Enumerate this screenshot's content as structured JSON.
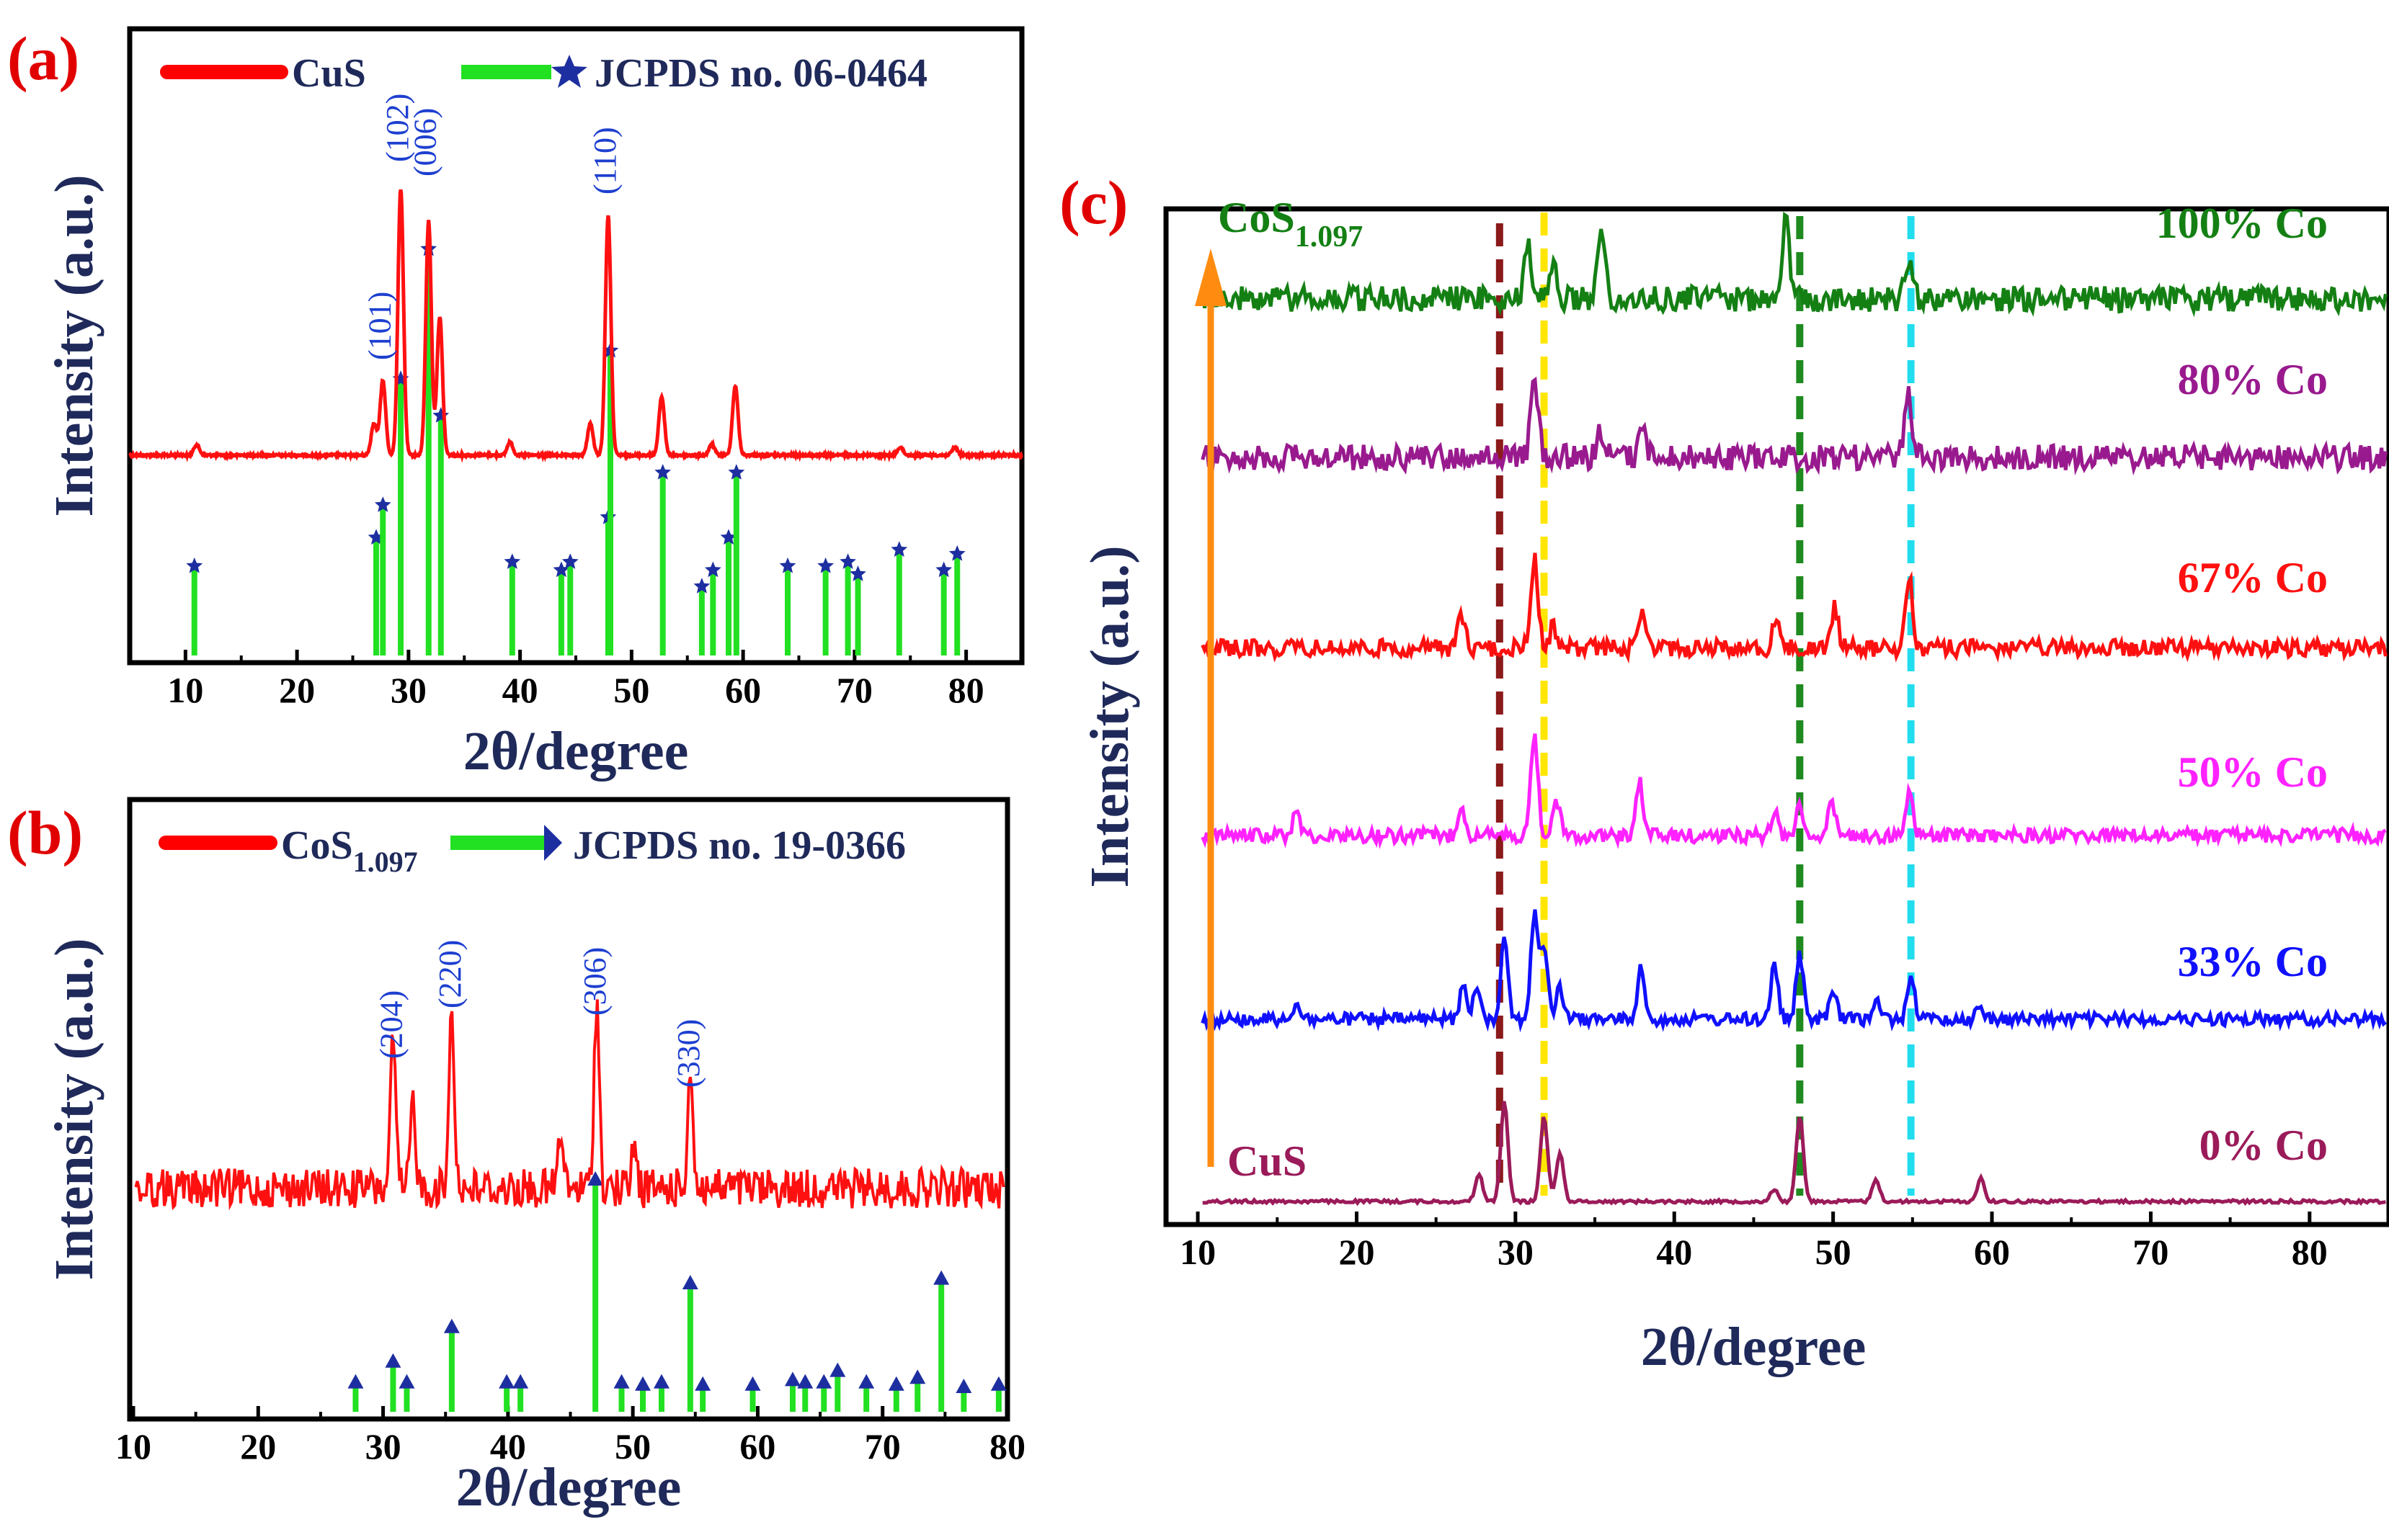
{
  "chart_data": [
    {
      "type": "line",
      "panel": "(a)",
      "xlabel": "2θ/degree",
      "ylabel": "Intensity (a.u.)",
      "xlim": [
        5,
        85
      ],
      "xticks": [
        10,
        20,
        30,
        40,
        50,
        60,
        70,
        80
      ],
      "legend": [
        {
          "label": "CuS",
          "kind": "line",
          "color": "#ff0000"
        },
        {
          "label": "JCPDS no. 06-0464",
          "kind": "stick",
          "color": "#22e022",
          "marker": "star"
        }
      ],
      "pattern_baseline": 0,
      "pattern_peaks": [
        {
          "x": 11.0,
          "h": 4
        },
        {
          "x": 26.9,
          "h": 12
        },
        {
          "x": 27.7,
          "h": 28
        },
        {
          "x": 29.3,
          "h": 100
        },
        {
          "x": 31.8,
          "h": 88
        },
        {
          "x": 32.8,
          "h": 52
        },
        {
          "x": 39.1,
          "h": 5
        },
        {
          "x": 46.3,
          "h": 12
        },
        {
          "x": 47.9,
          "h": 90
        },
        {
          "x": 52.7,
          "h": 22
        },
        {
          "x": 57.2,
          "h": 4
        },
        {
          "x": 59.3,
          "h": 26
        },
        {
          "x": 74.1,
          "h": 3
        },
        {
          "x": 79.0,
          "h": 3
        }
      ],
      "hkl_labels": [
        {
          "text": "(101)",
          "x": 27.7
        },
        {
          "text": "(102)",
          "x": 29.3
        },
        {
          "text": "(006)",
          "x": 31.8
        },
        {
          "text": "(110)",
          "x": 47.9
        }
      ],
      "reference_lines": [
        {
          "x": 10.8,
          "h": 22
        },
        {
          "x": 27.1,
          "h": 29
        },
        {
          "x": 27.7,
          "h": 37
        },
        {
          "x": 29.3,
          "h": 68
        },
        {
          "x": 31.8,
          "h": 100
        },
        {
          "x": 32.9,
          "h": 59
        },
        {
          "x": 39.3,
          "h": 23
        },
        {
          "x": 43.7,
          "h": 21
        },
        {
          "x": 44.5,
          "h": 23
        },
        {
          "x": 47.9,
          "h": 34
        },
        {
          "x": 48.1,
          "h": 75
        },
        {
          "x": 52.8,
          "h": 45
        },
        {
          "x": 56.3,
          "h": 17
        },
        {
          "x": 57.3,
          "h": 21
        },
        {
          "x": 58.7,
          "h": 29
        },
        {
          "x": 59.4,
          "h": 45
        },
        {
          "x": 64.0,
          "h": 22
        },
        {
          "x": 67.4,
          "h": 22
        },
        {
          "x": 69.4,
          "h": 23
        },
        {
          "x": 70.3,
          "h": 20
        },
        {
          "x": 74.0,
          "h": 26
        },
        {
          "x": 78.0,
          "h": 21
        },
        {
          "x": 79.2,
          "h": 25
        }
      ]
    },
    {
      "type": "line",
      "panel": "(b)",
      "xlabel": "2θ/degree",
      "ylabel": "Intensity (a.u.)",
      "xlim": [
        10,
        80
      ],
      "xticks": [
        10,
        20,
        30,
        40,
        50,
        60,
        70,
        80
      ],
      "legend": [
        {
          "label": "CoS",
          "sub": "1.097",
          "kind": "line",
          "color": "#ff0000"
        },
        {
          "label": "JCPDS no. 19-0366",
          "kind": "stick",
          "color": "#22e022",
          "marker": "triangle"
        }
      ],
      "pattern_peaks": [
        {
          "x": 30.8,
          "h": 62
        },
        {
          "x": 32.4,
          "h": 38
        },
        {
          "x": 35.5,
          "h": 76
        },
        {
          "x": 44.2,
          "h": 22
        },
        {
          "x": 47.1,
          "h": 78
        },
        {
          "x": 50.1,
          "h": 18
        },
        {
          "x": 54.6,
          "h": 50
        }
      ],
      "hkl_labels": [
        {
          "text": "(204)",
          "x": 30.8
        },
        {
          "text": "(220)",
          "x": 35.5
        },
        {
          "text": "(306)",
          "x": 47.1
        },
        {
          "text": "(330)",
          "x": 54.6
        }
      ],
      "reference_lines": [
        {
          "x": 27.8,
          "h": 12
        },
        {
          "x": 30.8,
          "h": 21
        },
        {
          "x": 31.9,
          "h": 12
        },
        {
          "x": 35.5,
          "h": 36
        },
        {
          "x": 39.9,
          "h": 12
        },
        {
          "x": 41.0,
          "h": 12
        },
        {
          "x": 47.0,
          "h": 100
        },
        {
          "x": 49.1,
          "h": 12
        },
        {
          "x": 50.8,
          "h": 11
        },
        {
          "x": 52.3,
          "h": 12
        },
        {
          "x": 54.6,
          "h": 55
        },
        {
          "x": 55.6,
          "h": 11
        },
        {
          "x": 59.6,
          "h": 11
        },
        {
          "x": 62.8,
          "h": 13
        },
        {
          "x": 63.8,
          "h": 12
        },
        {
          "x": 65.3,
          "h": 12
        },
        {
          "x": 66.4,
          "h": 17
        },
        {
          "x": 68.7,
          "h": 12
        },
        {
          "x": 71.1,
          "h": 11
        },
        {
          "x": 72.8,
          "h": 14
        },
        {
          "x": 74.7,
          "h": 57
        },
        {
          "x": 76.5,
          "h": 10
        },
        {
          "x": 79.3,
          "h": 11
        }
      ]
    },
    {
      "type": "line",
      "panel": "(c)",
      "xlabel": "2θ/degree",
      "ylabel": "Intensity (a.u.)",
      "xlim": [
        8,
        85
      ],
      "xticks": [
        10,
        20,
        30,
        40,
        50,
        60,
        70,
        80
      ],
      "arrow_bottom_label": "CuS",
      "arrow_top_label": {
        "text": "CoS",
        "sub": "1.097"
      },
      "guide_lines": [
        {
          "x": 29.0,
          "color": "#8b1a1a"
        },
        {
          "x": 31.8,
          "color": "#ffe600"
        },
        {
          "x": 47.9,
          "color": "#1f8a1f"
        },
        {
          "x": 54.9,
          "color": "#22ddee"
        }
      ],
      "series": [
        {
          "name": "0% Co",
          "color": "#9b1b5a",
          "noise": 2,
          "offset": 0,
          "peaks": [
            {
              "x": 27.7,
              "h": 30
            },
            {
              "x": 29.3,
              "h": 110
            },
            {
              "x": 31.8,
              "h": 95
            },
            {
              "x": 32.8,
              "h": 55
            },
            {
              "x": 46.3,
              "h": 14
            },
            {
              "x": 47.9,
              "h": 95
            },
            {
              "x": 52.7,
              "h": 25
            },
            {
              "x": 59.3,
              "h": 26
            }
          ]
        },
        {
          "name": "33% Co",
          "color": "#1010ff",
          "noise": 8,
          "offset": 1,
          "peaks": [
            {
              "x": 16.2,
              "h": 18
            },
            {
              "x": 26.7,
              "h": 35
            },
            {
              "x": 27.6,
              "h": 38
            },
            {
              "x": 29.3,
              "h": 90
            },
            {
              "x": 31.2,
              "h": 115
            },
            {
              "x": 31.8,
              "h": 80
            },
            {
              "x": 32.8,
              "h": 35
            },
            {
              "x": 37.9,
              "h": 55
            },
            {
              "x": 46.3,
              "h": 60
            },
            {
              "x": 47.9,
              "h": 70
            },
            {
              "x": 50.0,
              "h": 30
            },
            {
              "x": 52.8,
              "h": 20
            },
            {
              "x": 54.9,
              "h": 50
            },
            {
              "x": 59.3,
              "h": 15
            }
          ]
        },
        {
          "name": "50% Co",
          "color": "#ff22ff",
          "noise": 9,
          "offset": 2,
          "peaks": [
            {
              "x": 16.2,
              "h": 25
            },
            {
              "x": 26.6,
              "h": 35
            },
            {
              "x": 31.2,
              "h": 110
            },
            {
              "x": 32.6,
              "h": 35
            },
            {
              "x": 37.8,
              "h": 60
            },
            {
              "x": 46.3,
              "h": 25
            },
            {
              "x": 47.9,
              "h": 35
            },
            {
              "x": 49.9,
              "h": 35
            },
            {
              "x": 54.8,
              "h": 50
            }
          ]
        },
        {
          "name": "67% Co",
          "color": "#ff1010",
          "noise": 11,
          "offset": 3,
          "peaks": [
            {
              "x": 26.6,
              "h": 35
            },
            {
              "x": 31.2,
              "h": 100
            },
            {
              "x": 32.4,
              "h": 25
            },
            {
              "x": 38.0,
              "h": 40
            },
            {
              "x": 46.4,
              "h": 30
            },
            {
              "x": 50.1,
              "h": 45
            },
            {
              "x": 54.8,
              "h": 75
            }
          ]
        },
        {
          "name": "80% Co",
          "color": "#991a8e",
          "noise": 16,
          "offset": 4,
          "peaks": [
            {
              "x": 31.2,
              "h": 90
            },
            {
              "x": 35.4,
              "h": 30
            },
            {
              "x": 38.0,
              "h": 35
            },
            {
              "x": 54.7,
              "h": 70
            }
          ]
        },
        {
          "name": "100% Co",
          "color": "#148014",
          "noise": 16,
          "offset": 5,
          "peaks": [
            {
              "x": 30.8,
              "h": 60
            },
            {
              "x": 32.4,
              "h": 35
            },
            {
              "x": 35.4,
              "h": 80
            },
            {
              "x": 47.0,
              "h": 85
            },
            {
              "x": 54.7,
              "h": 45
            }
          ]
        }
      ]
    }
  ]
}
